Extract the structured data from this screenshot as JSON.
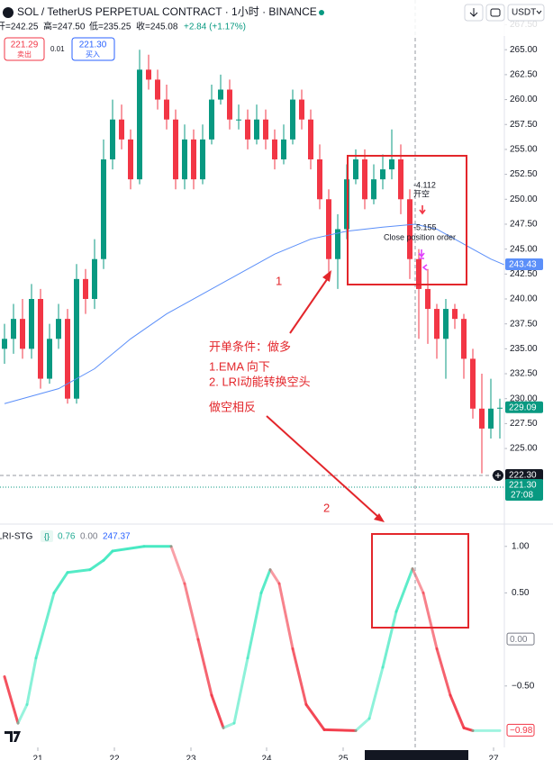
{
  "header": {
    "title": "SOL / TetherUS PERPETUAL CONTRACT · 1小时 · BINANCE",
    "ohlc": [
      "开=242.25",
      "高=247.50",
      "低=235.25",
      "收=245.08",
      "+2.84 (+1.17%)"
    ],
    "sell_price": "221.29",
    "sell_label": "卖出",
    "spread": "0.01",
    "buy_price": "221.30",
    "buy_label": "买入",
    "currency": "USDT"
  },
  "indicator_header": {
    "name": "LRI-STG",
    "values": [
      "0.76",
      "0.00",
      "247.37"
    ]
  },
  "chart_data": [
    {
      "type": "candlestick",
      "categories": [
        null,
        null,
        null,
        null,
        null,
        null,
        null,
        null,
        null,
        null,
        null,
        null,
        null,
        null,
        null,
        null,
        null,
        null,
        null,
        null,
        null,
        null,
        null,
        null,
        null,
        null,
        null,
        null,
        null,
        null,
        null,
        null,
        null,
        null,
        null,
        null,
        null,
        null,
        null,
        null,
        null,
        null,
        null,
        null,
        null,
        null,
        null,
        null,
        null,
        null,
        null,
        null,
        null,
        null,
        null,
        null
      ],
      "open": [
        235,
        236,
        238,
        235,
        240,
        232,
        236,
        238,
        230,
        242,
        240,
        244,
        254,
        258,
        256,
        252,
        263,
        262,
        260,
        258,
        252,
        256,
        252,
        256,
        260,
        261,
        258,
        258,
        256,
        258,
        256,
        254,
        256,
        260,
        258,
        254,
        250,
        244,
        247,
        252,
        254,
        250,
        252,
        253,
        254,
        250,
        244,
        241,
        239,
        236,
        239,
        238,
        234,
        229,
        227,
        229
      ],
      "high": [
        237.5,
        239.5,
        240,
        241.5,
        241,
        237.5,
        239.5,
        239,
        243.5,
        243,
        246,
        256,
        260,
        259.5,
        257,
        265,
        264.5,
        263,
        261.5,
        259,
        257.5,
        257,
        257.5,
        261.5,
        262.5,
        262,
        259.5,
        259,
        259.5,
        259,
        257,
        257.5,
        261,
        261,
        259,
        255.5,
        251,
        248.5,
        253.5,
        255,
        255,
        253.5,
        254.5,
        257,
        255.5,
        251,
        245,
        243,
        239.5,
        240,
        239.5,
        238.5,
        235,
        232.5,
        232,
        230
      ],
      "low": [
        233.5,
        234.5,
        234,
        234,
        231,
        231.5,
        235,
        229.5,
        229.5,
        238.5,
        239,
        243,
        253,
        255,
        251,
        251.5,
        261,
        259,
        257,
        251,
        251,
        251,
        251.5,
        255.5,
        259.5,
        257,
        257,
        255,
        255.5,
        255,
        253,
        253.5,
        255.5,
        257,
        253,
        249,
        242.5,
        241,
        246,
        251.5,
        249,
        249.5,
        251,
        252,
        248.5,
        242,
        236,
        235.5,
        234,
        232,
        237,
        232,
        228,
        222.5,
        226,
        226
      ],
      "close": [
        236,
        238,
        235,
        240,
        232,
        236,
        238,
        230,
        242,
        240,
        244,
        254,
        258,
        256,
        252,
        263,
        262,
        260,
        258,
        252,
        256,
        252,
        256,
        260,
        261,
        258,
        258,
        256,
        258,
        256,
        254,
        256,
        260,
        258,
        254,
        250,
        244,
        247,
        252,
        254,
        250,
        252,
        253,
        254,
        250,
        244,
        241,
        239,
        236,
        239,
        238,
        234,
        229,
        227,
        229,
        229.09
      ],
      "up_color": "#089981",
      "down_color": "#f23645",
      "ema": {
        "color": "#5b8ff9",
        "x": [
          0,
          6,
          10,
          14,
          18,
          22,
          26,
          30,
          34,
          38,
          42,
          45.6,
          48,
          50,
          52,
          54,
          55.5
        ],
        "values": [
          229.5,
          231,
          233,
          236,
          238.5,
          240.5,
          242.5,
          244.5,
          246,
          246.8,
          247.2,
          247.5,
          247,
          246,
          245,
          244,
          243.43
        ]
      },
      "xlim": [
        -0.5,
        55.5
      ],
      "ylim": [
        217.6,
        268
      ],
      "yticks": [
        {
          "value": 225,
          "label": "225.00"
        },
        {
          "value": 227.5,
          "label": "227.50"
        },
        {
          "value": 230,
          "label": "230.00"
        },
        {
          "value": 232.5,
          "label": "232.50"
        },
        {
          "value": 235,
          "label": "235.00"
        },
        {
          "value": 237.5,
          "label": "237.50"
        },
        {
          "value": 240,
          "label": "240.00"
        },
        {
          "value": 242.5,
          "label": "242.50"
        },
        {
          "value": 245,
          "label": "245.00"
        },
        {
          "value": 247.5,
          "label": "247.50"
        },
        {
          "value": 250,
          "label": "250.00"
        },
        {
          "value": 252.5,
          "label": "252.50"
        },
        {
          "value": 255,
          "label": "255.00"
        },
        {
          "value": 257.5,
          "label": "257.50"
        },
        {
          "value": 260,
          "label": "260.00"
        },
        {
          "value": 262.5,
          "label": "262.50"
        },
        {
          "value": 265,
          "label": "265.00"
        },
        {
          "value": 267.5,
          "label": "267.50"
        }
      ],
      "xticks": [
        {
          "value": 3.7,
          "label": "21"
        },
        {
          "value": 12.2,
          "label": "22"
        },
        {
          "value": 20.7,
          "label": "23"
        },
        {
          "value": 29.1,
          "label": "24"
        },
        {
          "value": 37.6,
          "label": "25"
        },
        {
          "value": 54.3,
          "label": "27"
        }
      ],
      "price_badges": [
        {
          "value": 243.43,
          "label": "243.43",
          "color": "#5b8ff9"
        },
        {
          "value": 229.09,
          "label": "229.09",
          "color": "#089981"
        },
        {
          "value": 222.3,
          "label": "222.30",
          "color": "#131722"
        },
        {
          "value": 221.3,
          "label": "221.30",
          "color": "#089981"
        }
      ],
      "countdown": "27:08"
    },
    {
      "type": "line",
      "rise_color": "#3ee8bf",
      "fall_color": "#f23645",
      "x": [
        0,
        1.5,
        2.5,
        3.5,
        5.5,
        7,
        9.5,
        11,
        12,
        15.5,
        18.5,
        20,
        21.5,
        23,
        24.3,
        25.5,
        27,
        28.5,
        29.5,
        30.5,
        32,
        33.5,
        35.5,
        39,
        40.5,
        42,
        43.5,
        45.3,
        46.5,
        48,
        49.5,
        51,
        52,
        55
      ],
      "values": [
        -0.4,
        -0.9,
        -0.7,
        -0.2,
        0.5,
        0.72,
        0.75,
        0.85,
        0.95,
        1,
        1,
        0.6,
        0,
        -0.6,
        -0.95,
        -0.9,
        -0.2,
        0.5,
        0.75,
        0.6,
        -0.1,
        -0.7,
        -0.97,
        -0.98,
        -0.85,
        -0.3,
        0.3,
        0.76,
        0.5,
        -0.1,
        -0.6,
        -0.95,
        -0.98,
        -0.98
      ],
      "xlim": [
        -0.5,
        55.5
      ],
      "ylim": [
        -1.16,
        1.23
      ],
      "yticks": [
        {
          "value": 1,
          "label": "1.00"
        },
        {
          "value": 0.5,
          "label": "0.50"
        },
        {
          "value": -0.5,
          "label": "−0.50"
        }
      ],
      "badges": [
        {
          "value": 0,
          "label": "0.00",
          "color": "#787b86"
        },
        {
          "value": -0.98,
          "label": "−0.98",
          "color": "#f23645"
        }
      ]
    }
  ],
  "strategy": {
    "entry_value": "-4.112",
    "entry_label": "开空",
    "exit_value": "-5.155",
    "exit_label": "Close position order"
  },
  "annotations": {
    "box1": "1",
    "box2": "2",
    "lines": [
      "开单条件：做多",
      "1.EMA 向下",
      "2. LRI动能转换空头"
    ],
    "note": "做空相反"
  }
}
